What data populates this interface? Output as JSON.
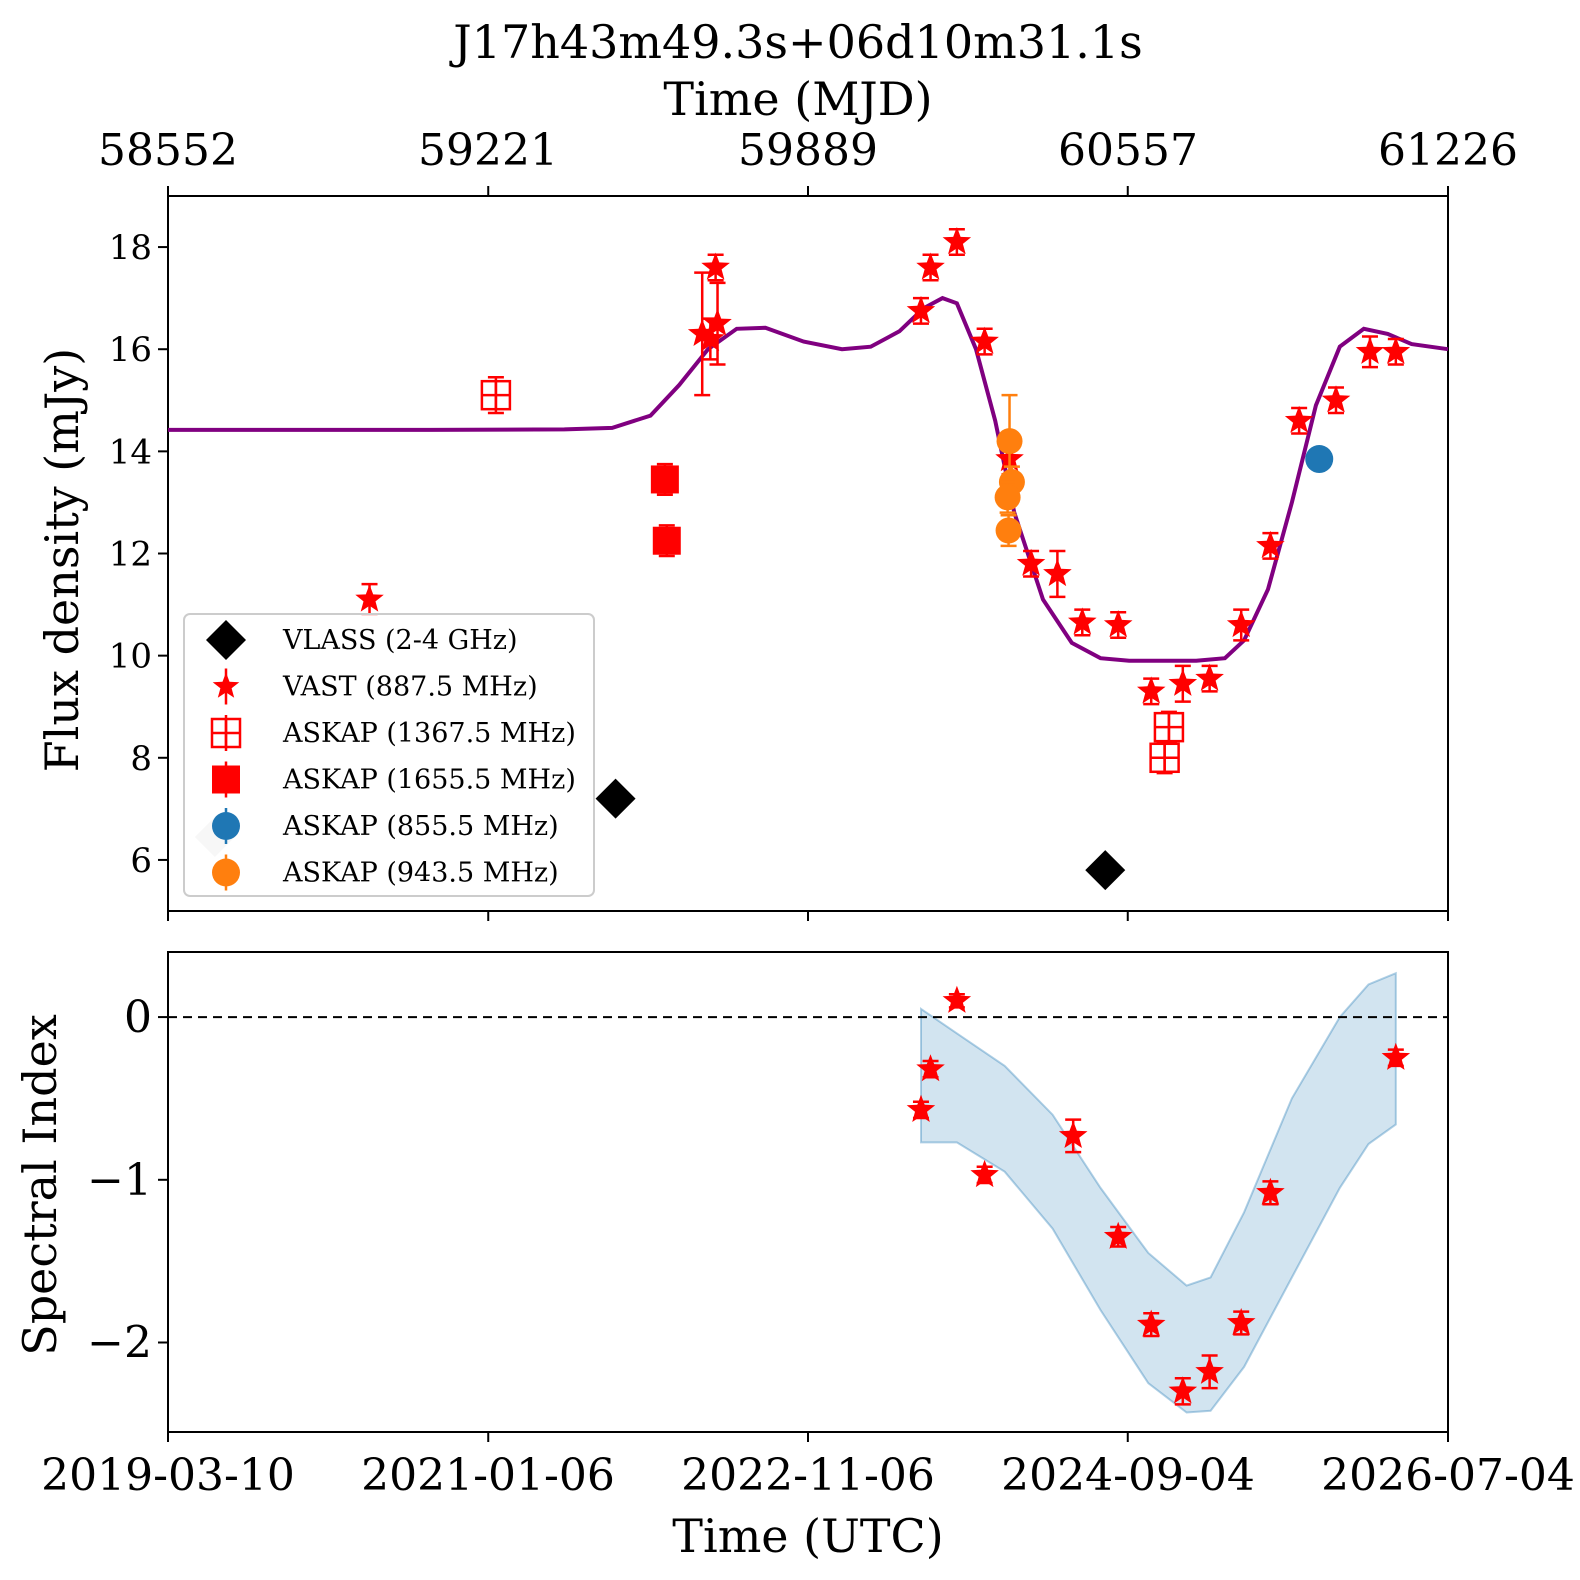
{
  "chart_data": [
    {
      "type": "scatter",
      "title": "J17h43m49.3s+06d10m31.1s",
      "top_axis_label": "Time (MJD)",
      "top_ticks": [
        "58552",
        "59221",
        "59889",
        "60557",
        "61226"
      ],
      "ylabel": "Flux density (mJy)",
      "xlabel": "Time (UTC)",
      "x_ticks": [
        "2019-03-10",
        "2021-01-06",
        "2022-11-06",
        "2024-09-04",
        "2026-07-04"
      ],
      "xlim_mjd": [
        58552,
        61226
      ],
      "ylim": [
        5,
        19
      ],
      "y_ticks": [
        6,
        8,
        10,
        12,
        14,
        16,
        18
      ],
      "legend_position": "lower-left",
      "colors": {
        "vlass": "#000000",
        "vast": "#ff0000",
        "askap_855": "#1f77b4",
        "askap_943": "#ff7f0e",
        "model": "#800080"
      },
      "series": [
        {
          "name": "VLASS (2-4 GHz)",
          "marker": "diamond",
          "points": [
            {
              "x": 58650,
              "y": 6.45,
              "upper_limit": true
            },
            {
              "x": 59487,
              "y": 7.2
            },
            {
              "x": 60510,
              "y": 5.8
            }
          ]
        },
        {
          "name": "VAST (887.5 MHz)",
          "marker": "star",
          "points": [
            {
              "x": 58973,
              "y": 11.1,
              "err": 0.3
            },
            {
              "x": 59668,
              "y": 16.3,
              "err": 1.2
            },
            {
              "x": 59685,
              "y": 16.2,
              "err": 0.4
            },
            {
              "x": 59696,
              "y": 17.6,
              "err": 0.25
            },
            {
              "x": 59700,
              "y": 16.5,
              "err": 0.8
            },
            {
              "x": 60775,
              "y": 9.55,
              "err": 0.25
            },
            {
              "x": 60774,
              "y": 9.5,
              "err": 0.2
            },
            {
              "x": 60768,
              "y": 9.5,
              "err": 0.3
            },
            {
              "x": 60775,
              "y": 9.55,
              "err": 0.2
            },
            {
              "x": 60774,
              "y": 9.5,
              "err": 0.2
            }
          ]
        },
        {
          "name": "ASKAP (1367.5 MHz)",
          "marker": "open-square",
          "points": [
            {
              "x": 59237,
              "y": 15.1,
              "err": 0.35
            },
            {
              "x": 60643,
              "y": 8.6,
              "err": 0.3
            },
            {
              "x": 60634,
              "y": 8.0,
              "err": 0.3
            }
          ]
        },
        {
          "name": "ASKAP (1655.5 MHz)",
          "marker": "square",
          "points": [
            {
              "x": 59590,
              "y": 13.45,
              "err": 0.3
            },
            {
              "x": 59594,
              "y": 12.25,
              "err": 0.3
            }
          ]
        },
        {
          "name": "ASKAP (855.5 MHz)",
          "marker": "circle",
          "points": [
            {
              "x": 60957,
              "y": 13.85
            }
          ]
        },
        {
          "name": "ASKAP (943.5 MHz)",
          "marker": "circle",
          "points": [
            {
              "x": 60310,
              "y": 14.2,
              "err": 0.9
            },
            {
              "x": 60315,
              "y": 13.4,
              "err": 0.3
            },
            {
              "x": 60306,
              "y": 13.1,
              "err": 0.3
            },
            {
              "x": 60308,
              "y": 12.45,
              "err": 0.3
            }
          ]
        }
      ]
    },
    {
      "type": "scatter",
      "ylabel": "Spectral Index",
      "ylim": [
        -2.55,
        0.4
      ],
      "y_ticks": [
        0,
        -1,
        -2
      ],
      "reference_line": 0,
      "band_color": "#1f77b4",
      "points_color": "#ff0000",
      "points": [
        {
          "x": 60125,
          "y": -0.57,
          "err": 0.05
        },
        {
          "x": 60145,
          "y": -0.32,
          "err": 0.05
        },
        {
          "x": 60200,
          "y": 0.1,
          "err": 0.04
        },
        {
          "x": 60258,
          "y": -0.97,
          "err": 0.05
        },
        {
          "x": 60443,
          "y": -0.73,
          "err": 0.1
        },
        {
          "x": 60537,
          "y": -1.35,
          "err": 0.06
        },
        {
          "x": 60606,
          "y": -1.89,
          "err": 0.07
        },
        {
          "x": 60672,
          "y": -2.3,
          "err": 0.08
        },
        {
          "x": 60728,
          "y": -2.18,
          "err": 0.1
        },
        {
          "x": 60794,
          "y": -1.88,
          "err": 0.07
        },
        {
          "x": 60855,
          "y": -1.08,
          "err": 0.07
        },
        {
          "x": 61117,
          "y": -0.25,
          "err": 0.05
        }
      ]
    }
  ]
}
